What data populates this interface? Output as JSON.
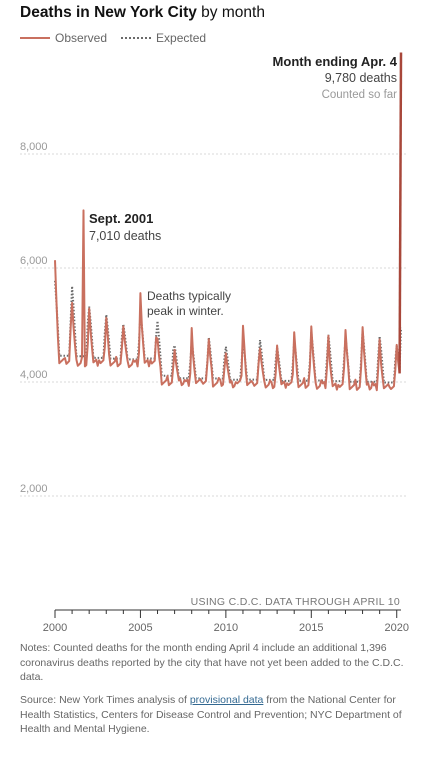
{
  "title": {
    "bold": "Deaths in New York City",
    "rest": " by month"
  },
  "legend": {
    "observed": "Observed",
    "expected": "Expected"
  },
  "colors": {
    "observed": "#c9705f",
    "observed_spike": "#a8473a",
    "expected": "#6a6a6a",
    "grid": "#d9d9d9",
    "axis": "#999999"
  },
  "chart_data": {
    "type": "line",
    "xlim": [
      2000.0,
      2020.25
    ],
    "ylim": [
      0,
      10000
    ],
    "yticks": [
      2000,
      4000,
      6000,
      8000
    ],
    "ytick_labels": [
      "2,000",
      "4,000",
      "6,000",
      "8,000"
    ],
    "xticks": [
      2000,
      2005,
      2010,
      2015,
      2020
    ],
    "xtick_labels": [
      "2000",
      "2005",
      "2010",
      "2015",
      "2020"
    ],
    "grid": true,
    "series": [
      {
        "name": "Observed",
        "style": "solid",
        "x": [],
        "y": []
      },
      {
        "name": "Expected",
        "style": "dotted",
        "x": [],
        "y": []
      }
    ],
    "annotations": {
      "sept2001": {
        "x": 2001.75,
        "y": 7010,
        "heading": "Sept. 2001",
        "text": "7,010 deaths"
      },
      "winter": {
        "x": 2005.0,
        "y": 5500,
        "text_line1": "Deaths typically",
        "text_line2": "peak in winter."
      },
      "april": {
        "x": 2020.25,
        "y": 9780,
        "heading": "Month ending Apr. 4",
        "text": "9,780 deaths",
        "note": "Counted so far"
      }
    },
    "data_note": "USING C.D.C. DATA THROUGH APRIL 10"
  },
  "notes": "Notes: Counted deaths for the month ending April 4 include an additional 1,396 coronavirus deaths reported by the city that have not yet been added to the C.D.C. data.",
  "source": {
    "prefix": "Source: New York Times analysis of ",
    "link": "provisional data",
    "suffix": " from the National Center for Health Statistics, Centers for Disease Control and Prevention; NYC Department of Health and Mental Hygiene."
  }
}
